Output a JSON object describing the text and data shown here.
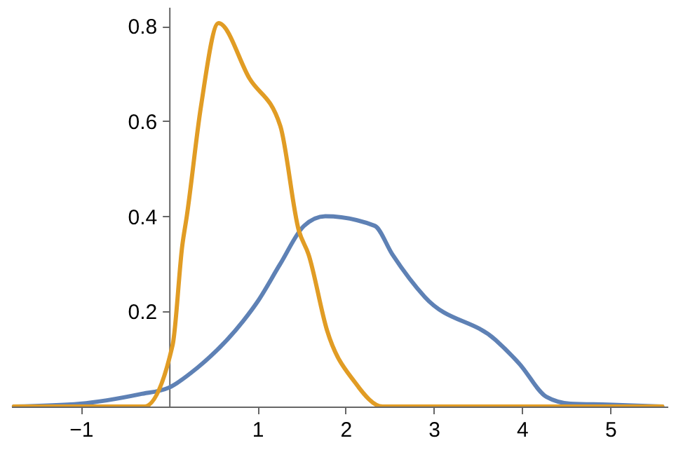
{
  "chart_data": {
    "type": "line",
    "xlim": [
      -1.79,
      5.65
    ],
    "ylim": [
      0,
      0.84
    ],
    "xticks": [
      -1,
      1,
      2,
      3,
      4,
      5
    ],
    "yticks": [
      0.2,
      0.4,
      0.6,
      0.8
    ],
    "grid": false,
    "series": [
      {
        "color": "#5e81b5",
        "x": [
          -1.76,
          -1.01,
          -0.33,
          0,
          0.31,
          0.84,
          1.0,
          1.26,
          1.53,
          1.77,
          2.33,
          2.53,
          2.9,
          3.7,
          3.97,
          4.28,
          4.55,
          4.97,
          5.59
        ],
        "values": [
          0,
          0.006,
          0.026,
          0.04,
          0.08,
          0.18,
          0.22,
          0.3,
          0.38,
          0.4,
          0.38,
          0.32,
          0.23,
          0.14,
          0.09,
          0.02,
          0.006,
          0.004,
          0
        ]
      },
      {
        "color": "#e19c24",
        "x": [
          -1.76,
          -0.28,
          0.04,
          0.15,
          0.2,
          0.36,
          0.56,
          0.91,
          1.26,
          1.47,
          1.58,
          1.79,
          2.11,
          2.42,
          5.59
        ],
        "values": [
          0,
          0,
          0.13,
          0.34,
          0.4,
          0.63,
          0.806,
          0.69,
          0.59,
          0.37,
          0.32,
          0.16,
          0.05,
          0,
          0
        ]
      }
    ]
  }
}
